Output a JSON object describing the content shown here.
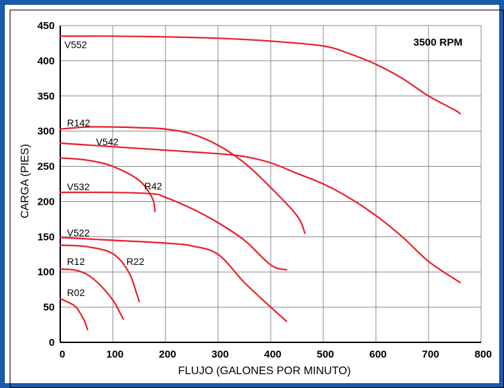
{
  "chart_data": {
    "type": "line",
    "title": "",
    "annotation": "3500 RPM",
    "xlabel": "FLUJO (GALONES POR MINUTO)",
    "ylabel": "CARGA (PIES)",
    "xlim": [
      0,
      800
    ],
    "ylim": [
      0,
      450
    ],
    "xticks": [
      0,
      100,
      200,
      300,
      400,
      500,
      600,
      700,
      800
    ],
    "yticks": [
      0,
      50,
      100,
      150,
      200,
      250,
      300,
      350,
      400,
      450
    ],
    "grid": true,
    "line_color": "#e8202a",
    "series": [
      {
        "name": "V552",
        "label_at": [
          0,
          418
        ],
        "points": [
          [
            0,
            435
          ],
          [
            100,
            435
          ],
          [
            200,
            434
          ],
          [
            300,
            432
          ],
          [
            400,
            428
          ],
          [
            500,
            421
          ],
          [
            550,
            410
          ],
          [
            600,
            395
          ],
          [
            650,
            375
          ],
          [
            700,
            350
          ],
          [
            750,
            330
          ],
          [
            760,
            325
          ]
        ]
      },
      {
        "name": "R142",
        "label_at": [
          5,
          307
        ],
        "points": [
          [
            0,
            303
          ],
          [
            50,
            306
          ],
          [
            100,
            306
          ],
          [
            150,
            305
          ],
          [
            200,
            303
          ],
          [
            250,
            296
          ],
          [
            300,
            280
          ],
          [
            350,
            255
          ],
          [
            400,
            220
          ],
          [
            450,
            180
          ],
          [
            465,
            155
          ]
        ]
      },
      {
        "name": "V542",
        "label_at": [
          60,
          280
        ],
        "points": [
          [
            0,
            283
          ],
          [
            100,
            278
          ],
          [
            200,
            273
          ],
          [
            300,
            268
          ],
          [
            350,
            264
          ],
          [
            400,
            255
          ],
          [
            450,
            240
          ],
          [
            500,
            225
          ],
          [
            550,
            205
          ],
          [
            600,
            180
          ],
          [
            650,
            150
          ],
          [
            700,
            115
          ],
          [
            760,
            85
          ]
        ]
      },
      {
        "name": "R42",
        "label_at": [
          152,
          217
        ],
        "points": [
          [
            0,
            262
          ],
          [
            50,
            259
          ],
          [
            100,
            250
          ],
          [
            150,
            230
          ],
          [
            175,
            205
          ],
          [
            180,
            186
          ]
        ]
      },
      {
        "name": "V532",
        "label_at": [
          5,
          216
        ],
        "points": [
          [
            0,
            213
          ],
          [
            100,
            213
          ],
          [
            175,
            211
          ],
          [
            200,
            206
          ],
          [
            250,
            190
          ],
          [
            300,
            170
          ],
          [
            350,
            145
          ],
          [
            400,
            110
          ],
          [
            430,
            103
          ]
        ]
      },
      {
        "name": "V522",
        "label_at": [
          5,
          151
        ],
        "points": [
          [
            0,
            149
          ],
          [
            100,
            145
          ],
          [
            200,
            141
          ],
          [
            250,
            137
          ],
          [
            300,
            125
          ],
          [
            350,
            85
          ],
          [
            400,
            50
          ],
          [
            430,
            30
          ]
        ]
      },
      {
        "name": "R22",
        "label_at": [
          118,
          110
        ],
        "points": [
          [
            0,
            138
          ],
          [
            50,
            136
          ],
          [
            100,
            126
          ],
          [
            130,
            100
          ],
          [
            145,
            70
          ],
          [
            150,
            58
          ]
        ]
      },
      {
        "name": "R12",
        "label_at": [
          5,
          110
        ],
        "points": [
          [
            0,
            104
          ],
          [
            25,
            103
          ],
          [
            50,
            97
          ],
          [
            75,
            82
          ],
          [
            100,
            60
          ],
          [
            115,
            40
          ],
          [
            120,
            33
          ]
        ]
      },
      {
        "name": "R02",
        "label_at": [
          5,
          66
        ],
        "points": [
          [
            0,
            62
          ],
          [
            15,
            57
          ],
          [
            30,
            50
          ],
          [
            45,
            32
          ],
          [
            52,
            18
          ]
        ]
      }
    ]
  }
}
